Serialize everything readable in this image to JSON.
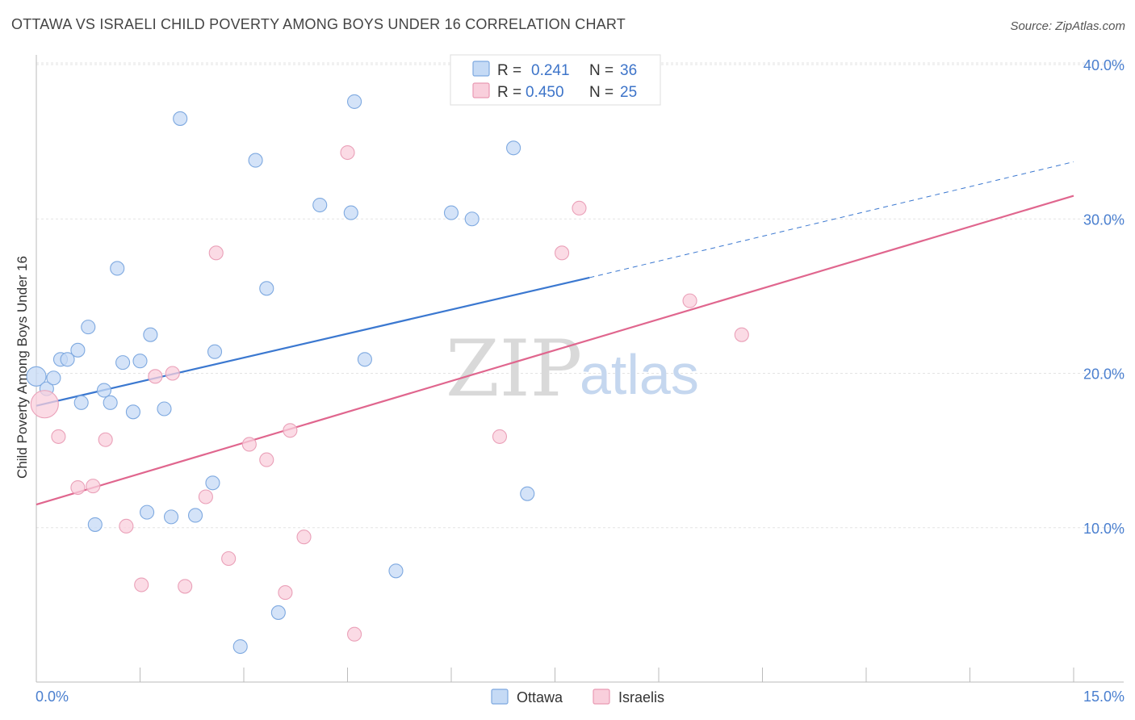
{
  "header": {
    "title": "OTTAWA VS ISRAELI CHILD POVERTY AMONG BOYS UNDER 16 CORRELATION CHART",
    "source": "Source: ZipAtlas.com"
  },
  "watermark": {
    "zip": "ZIP",
    "atlas": "atlas"
  },
  "legend": {
    "rows": [
      {
        "r_label": "R =",
        "r_value": "0.241",
        "n_label": "N =",
        "n_value": "36",
        "color": "#a9c8f0"
      },
      {
        "r_label": "R =",
        "r_value": "0.450",
        "n_label": "N =",
        "n_value": "25",
        "color": "#f5b8c9"
      }
    ]
  },
  "bottom_legend": [
    "Ottawa",
    "Israelis"
  ],
  "chart_data": {
    "type": "scatter",
    "title": "OTTAWA VS ISRAELI CHILD POVERTY AMONG BOYS UNDER 16 CORRELATION CHART",
    "xlabel": "",
    "ylabel": "Child Poverty Among Boys Under 16",
    "xlim": [
      0,
      15
    ],
    "ylim": [
      0,
      40
    ],
    "x_tick_labels": [
      "0.0%",
      "15.0%"
    ],
    "y_ticks": [
      10,
      20,
      30,
      40
    ],
    "y_tick_labels": [
      "10.0%",
      "20.0%",
      "30.0%",
      "40.0%"
    ],
    "grid": true,
    "colors": {
      "ottawa": "#3b78d0",
      "ottawa_fill": "#c5daf5",
      "israelis": "#e0668e",
      "israelis_fill": "#f9cfdc"
    },
    "series": [
      {
        "name": "Ottawa",
        "points": [
          [
            0.0,
            19.8
          ],
          [
            0.15,
            19.0
          ],
          [
            0.25,
            19.7
          ],
          [
            0.35,
            20.9
          ],
          [
            0.45,
            20.9
          ],
          [
            0.6,
            21.5
          ],
          [
            0.65,
            18.1
          ],
          [
            0.75,
            23.0
          ],
          [
            0.85,
            10.2
          ],
          [
            0.98,
            18.9
          ],
          [
            1.07,
            18.1
          ],
          [
            1.17,
            26.8
          ],
          [
            1.25,
            20.7
          ],
          [
            1.4,
            17.5
          ],
          [
            1.5,
            20.8
          ],
          [
            1.6,
            11.0
          ],
          [
            1.65,
            22.5
          ],
          [
            1.85,
            17.7
          ],
          [
            1.95,
            10.7
          ],
          [
            2.08,
            36.5
          ],
          [
            2.3,
            10.8
          ],
          [
            2.55,
            12.9
          ],
          [
            2.58,
            21.4
          ],
          [
            2.95,
            2.3
          ],
          [
            3.17,
            33.8
          ],
          [
            3.33,
            25.5
          ],
          [
            3.5,
            4.5
          ],
          [
            4.1,
            30.9
          ],
          [
            4.55,
            30.4
          ],
          [
            4.6,
            37.6
          ],
          [
            4.75,
            20.9
          ],
          [
            5.2,
            7.2
          ],
          [
            6.0,
            30.4
          ],
          [
            6.3,
            30.0
          ],
          [
            6.9,
            34.6
          ],
          [
            7.1,
            12.2
          ]
        ]
      },
      {
        "name": "Israelis",
        "points": [
          [
            0.12,
            18.0
          ],
          [
            0.32,
            15.9
          ],
          [
            0.6,
            12.6
          ],
          [
            0.82,
            12.7
          ],
          [
            1.0,
            15.7
          ],
          [
            1.3,
            10.1
          ],
          [
            1.52,
            6.3
          ],
          [
            1.72,
            19.8
          ],
          [
            1.97,
            20.0
          ],
          [
            2.15,
            6.2
          ],
          [
            2.45,
            12.0
          ],
          [
            2.6,
            27.8
          ],
          [
            2.78,
            8.0
          ],
          [
            3.08,
            15.4
          ],
          [
            3.33,
            14.4
          ],
          [
            3.6,
            5.8
          ],
          [
            3.67,
            16.3
          ],
          [
            3.87,
            9.4
          ],
          [
            4.5,
            34.3
          ],
          [
            4.6,
            3.1
          ],
          [
            6.7,
            15.9
          ],
          [
            7.6,
            27.8
          ],
          [
            7.85,
            30.7
          ],
          [
            9.45,
            24.7
          ],
          [
            10.2,
            22.5
          ]
        ]
      }
    ],
    "trendlines": [
      {
        "name": "Ottawa",
        "x_solid": [
          0,
          8.0
        ],
        "y_solid": [
          17.9,
          26.2
        ],
        "x_dashed": [
          8.0,
          15.0
        ],
        "y_dashed": [
          26.2,
          33.7
        ]
      },
      {
        "name": "Israelis",
        "x": [
          0,
          15.0
        ],
        "y": [
          11.5,
          31.5
        ]
      }
    ]
  }
}
